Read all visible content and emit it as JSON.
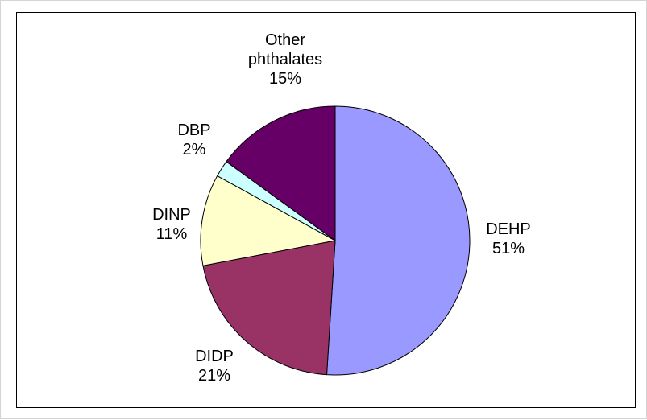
{
  "chart_data": {
    "type": "pie",
    "slices": [
      {
        "label": "DEHP",
        "value_label": "51%",
        "value": 51,
        "color": "#9999ff"
      },
      {
        "label": "DIDP",
        "value_label": "21%",
        "value": 21,
        "color": "#993366"
      },
      {
        "label": "DINP",
        "value_label": "11%",
        "value": 11,
        "color": "#ffffcc"
      },
      {
        "label": "DBP",
        "value_label": "2%",
        "value": 2,
        "color": "#ccffff"
      },
      {
        "label": "Other\nphthalates",
        "value_label": "15%",
        "value": 15,
        "color": "#660066"
      }
    ],
    "start": "12 o'clock",
    "direction": "clockwise",
    "legend": "none",
    "data_labels": "category and percentage outside slices"
  }
}
